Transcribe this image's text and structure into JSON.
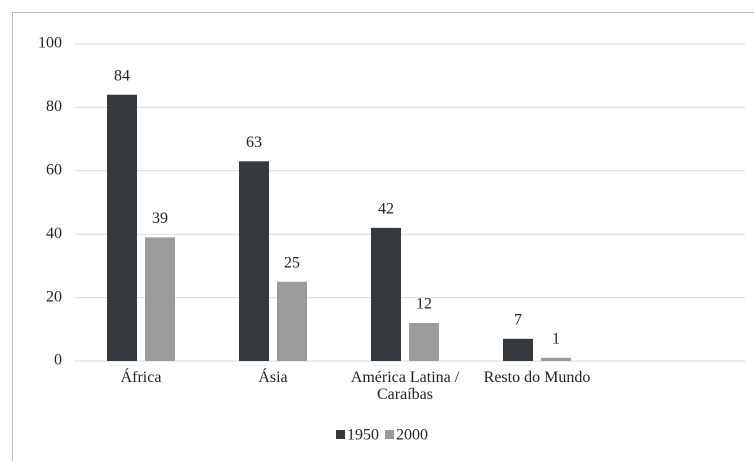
{
  "chart_data": {
    "type": "bar",
    "categories": [
      "África",
      "Ásia",
      "América Latina / Caraíbas",
      "Resto do Mundo"
    ],
    "series": [
      {
        "name": "1950",
        "color": "#343a3e",
        "values": [
          84,
          63,
          42,
          7
        ]
      },
      {
        "name": "2000",
        "color": "#9b9b9b",
        "values": [
          39,
          25,
          12,
          1
        ]
      }
    ],
    "ylim": [
      0,
      100
    ],
    "yticks": [
      0,
      20,
      40,
      60,
      80,
      100
    ],
    "grid": true,
    "legend": "bottom"
  }
}
